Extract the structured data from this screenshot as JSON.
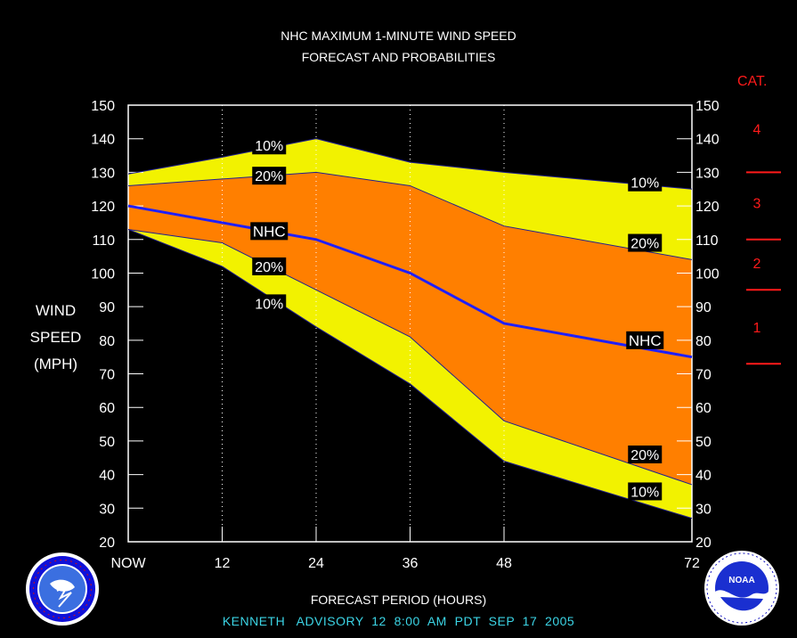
{
  "header": {
    "title_line1": "NHC MAXIMUM 1-MINUTE WIND SPEED",
    "title_line2": "FORECAST AND PROBABILITIES"
  },
  "y_axis_label": [
    "WIND",
    "SPEED",
    "(MPH)"
  ],
  "x_axis_label": "FORECAST PERIOD (HOURS)",
  "advisory": "KENNETH   ADVISORY  12  8:00  AM  PDT  SEP  17  2005",
  "category_header": "CAT.",
  "colors": {
    "outer_band": "#f2f200",
    "inner_band": "#ff7f00",
    "nhc_line": "#1f1fff",
    "category": "#ff1a1a",
    "advisory_text": "#3cd5e6"
  },
  "chart_data": {
    "type": "area",
    "x": [
      0,
      12,
      24,
      36,
      48,
      72
    ],
    "x_tick_labels": [
      "NOW",
      "12",
      "24",
      "36",
      "48",
      "72"
    ],
    "ylim": [
      20,
      150
    ],
    "y_ticks": [
      20,
      30,
      40,
      50,
      60,
      70,
      80,
      90,
      100,
      110,
      120,
      130,
      140,
      150
    ],
    "series": [
      {
        "name": "10%",
        "values": [
          129.5,
          134.5,
          140,
          133,
          130,
          125
        ]
      },
      {
        "name": "20%",
        "values": [
          126,
          128,
          130,
          126,
          114,
          104
        ]
      },
      {
        "name": "NHC",
        "values": [
          120,
          115,
          110,
          100,
          85,
          75
        ]
      },
      {
        "name": "20%",
        "values": [
          113,
          109,
          95,
          81,
          56,
          37
        ]
      },
      {
        "name": "10%",
        "values": [
          113,
          102,
          84,
          67,
          44,
          27
        ]
      }
    ],
    "labels": [
      {
        "text": "10%",
        "x": 18,
        "y": 138
      },
      {
        "text": "20%",
        "x": 18,
        "y": 129
      },
      {
        "text": "NHC",
        "x": 18,
        "y": 112.5
      },
      {
        "text": "20%",
        "x": 18,
        "y": 102
      },
      {
        "text": "10%",
        "x": 18,
        "y": 91
      },
      {
        "text": "10%",
        "x": 66,
        "y": 127
      },
      {
        "text": "20%",
        "x": 66,
        "y": 109
      },
      {
        "text": "NHC",
        "x": 66,
        "y": 80
      },
      {
        "text": "20%",
        "x": 66,
        "y": 46
      },
      {
        "text": "10%",
        "x": 66,
        "y": 35
      }
    ],
    "categories_scale": [
      {
        "label": "4",
        "y": 143
      },
      {
        "label": "3",
        "y": 121
      },
      {
        "label": "2",
        "y": 103
      },
      {
        "label": "1",
        "y": 84
      }
    ],
    "category_thresholds": [
      130,
      110,
      95,
      73
    ]
  }
}
